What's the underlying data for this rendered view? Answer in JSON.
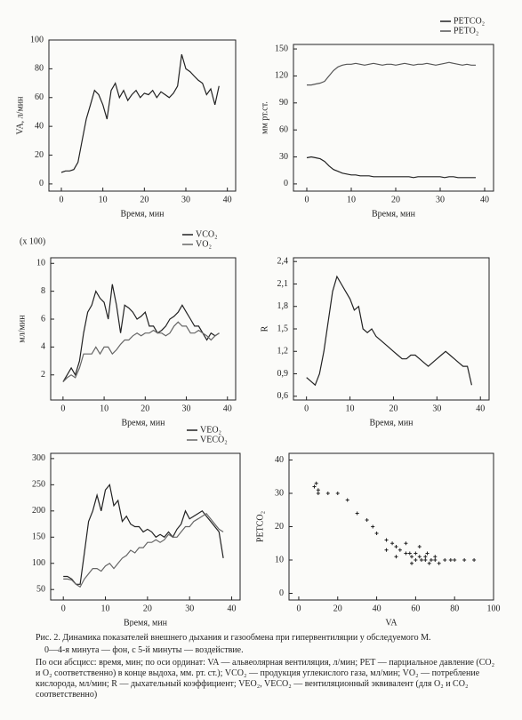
{
  "chart_data": [
    {
      "type": "line",
      "xlabel": "Время, мин",
      "ylabel": "VA, л/мин",
      "color": "#222",
      "x": [
        0,
        1,
        2,
        3,
        4,
        5,
        6,
        7,
        8,
        9,
        10,
        11,
        12,
        13,
        14,
        15,
        16,
        17,
        18,
        19,
        20,
        21,
        22,
        23,
        24,
        25,
        26,
        27,
        28,
        29,
        30,
        31,
        32,
        33,
        34,
        35,
        36,
        37,
        38
      ],
      "values": [
        8,
        9,
        9,
        10,
        15,
        30,
        45,
        55,
        65,
        62,
        55,
        45,
        65,
        70,
        60,
        65,
        58,
        62,
        65,
        60,
        63,
        62,
        65,
        60,
        64,
        62,
        60,
        63,
        68,
        90,
        80,
        78,
        75,
        72,
        70,
        62,
        66,
        55,
        68
      ],
      "xlim": [
        -3,
        42
      ],
      "xticks": [
        0,
        10,
        20,
        30,
        40
      ],
      "ylim": [
        -5,
        100
      ],
      "yticks": [
        0,
        20,
        40,
        60,
        80,
        100
      ]
    },
    {
      "type": "line",
      "xlabel": "Время, мин",
      "ylabel": "мм рт.ст.",
      "x": [
        0,
        1,
        2,
        3,
        4,
        5,
        6,
        7,
        8,
        9,
        10,
        11,
        12,
        13,
        14,
        15,
        16,
        17,
        18,
        19,
        20,
        21,
        22,
        23,
        24,
        25,
        26,
        27,
        28,
        29,
        30,
        31,
        32,
        33,
        34,
        35,
        36,
        37,
        38
      ],
      "series": [
        {
          "name": "PETCO₂",
          "color": "#222",
          "values": [
            29,
            30,
            29,
            28,
            25,
            20,
            16,
            14,
            12,
            11,
            10,
            10,
            9,
            9,
            9,
            8,
            8,
            8,
            8,
            8,
            8,
            8,
            8,
            8,
            7,
            8,
            8,
            8,
            8,
            8,
            8,
            7,
            8,
            8,
            7,
            7,
            7,
            7,
            7
          ]
        },
        {
          "name": "PETO₂",
          "color": "#555",
          "values": [
            110,
            110,
            111,
            112,
            114,
            120,
            126,
            130,
            132,
            133,
            133,
            134,
            133,
            132,
            133,
            134,
            133,
            132,
            133,
            133,
            132,
            133,
            134,
            133,
            132,
            133,
            133,
            134,
            133,
            132,
            133,
            134,
            135,
            134,
            133,
            132,
            133,
            132,
            132
          ]
        }
      ],
      "legend": "top-right",
      "xlim": [
        -3,
        42
      ],
      "xticks": [
        0,
        10,
        20,
        30,
        40
      ],
      "ylim": [
        -8,
        155
      ],
      "yticks": [
        0,
        30,
        60,
        90,
        120,
        150
      ]
    },
    {
      "type": "line",
      "xlabel": "Время, мин",
      "ylabel": "мл/мин",
      "scale_note": "(x 100)",
      "x": [
        0,
        1,
        2,
        3,
        4,
        5,
        6,
        7,
        8,
        9,
        10,
        11,
        12,
        13,
        14,
        15,
        16,
        17,
        18,
        19,
        20,
        21,
        22,
        23,
        24,
        25,
        26,
        27,
        28,
        29,
        30,
        31,
        32,
        33,
        34,
        35,
        36,
        37,
        38
      ],
      "series": [
        {
          "name": "VCO₂",
          "color": "#222",
          "values": [
            1.5,
            2,
            2.5,
            2,
            3,
            5,
            6.5,
            7,
            8,
            7.5,
            7.2,
            6,
            8.5,
            7,
            5,
            7,
            6.8,
            6.5,
            6,
            6.2,
            6.5,
            5.5,
            5.5,
            5,
            5.2,
            5.5,
            6,
            6.2,
            6.5,
            7,
            6.5,
            6,
            5.5,
            5.5,
            5,
            4.5,
            5,
            4.8,
            5
          ]
        },
        {
          "name": "VO₂",
          "color": "#666",
          "values": [
            1.5,
            1.8,
            2,
            1.8,
            2.5,
            3.5,
            3.5,
            3.5,
            4,
            3.5,
            4,
            4,
            3.5,
            3.8,
            4.2,
            4.5,
            4.5,
            4.8,
            5,
            4.8,
            5,
            5,
            5.2,
            5,
            5,
            4.8,
            5,
            5.5,
            5.8,
            5.5,
            5.5,
            5,
            5,
            5.2,
            5,
            4.8,
            4.5,
            4.8,
            5
          ]
        }
      ],
      "legend": "top-right",
      "xlim": [
        -3,
        42
      ],
      "xticks": [
        0,
        10,
        20,
        30,
        40
      ],
      "ylim": [
        0.2,
        10.4
      ],
      "yticks": [
        2,
        4,
        6,
        8,
        10
      ]
    },
    {
      "type": "line",
      "xlabel": "Время, мин",
      "ylabel": "R",
      "color": "#222",
      "x": [
        0,
        1,
        2,
        3,
        4,
        5,
        6,
        7,
        8,
        9,
        10,
        11,
        12,
        13,
        14,
        15,
        16,
        17,
        18,
        19,
        20,
        21,
        22,
        23,
        24,
        25,
        26,
        27,
        28,
        29,
        30,
        31,
        32,
        33,
        34,
        35,
        36,
        37,
        38
      ],
      "values": [
        0.85,
        0.8,
        0.75,
        0.9,
        1.2,
        1.6,
        2.0,
        2.2,
        2.1,
        2.0,
        1.9,
        1.75,
        1.8,
        1.5,
        1.45,
        1.5,
        1.4,
        1.35,
        1.3,
        1.25,
        1.2,
        1.15,
        1.1,
        1.1,
        1.15,
        1.15,
        1.1,
        1.05,
        1.0,
        1.05,
        1.1,
        1.15,
        1.2,
        1.15,
        1.1,
        1.05,
        1.0,
        1.0,
        0.75
      ],
      "xlim": [
        -3,
        42
      ],
      "xticks": [
        0,
        10,
        20,
        30,
        40
      ],
      "ylim": [
        0.55,
        2.45
      ],
      "yticks": [
        {
          "value": 0.6,
          "label": "0,6"
        },
        {
          "value": 0.9,
          "label": "0,9"
        },
        {
          "value": 1.2,
          "label": "1,2"
        },
        {
          "value": 1.5,
          "label": "1,5"
        },
        {
          "value": 1.8,
          "label": "1,8"
        },
        {
          "value": 2.1,
          "label": "2,1"
        },
        {
          "value": 2.4,
          "label": "2,4"
        }
      ]
    },
    {
      "type": "line",
      "xlabel": "Время, мин",
      "x": [
        0,
        1,
        2,
        3,
        4,
        5,
        6,
        7,
        8,
        9,
        10,
        11,
        12,
        13,
        14,
        15,
        16,
        17,
        18,
        19,
        20,
        21,
        22,
        23,
        24,
        25,
        26,
        27,
        28,
        29,
        30,
        31,
        32,
        33,
        34,
        35,
        36,
        37,
        38
      ],
      "series": [
        {
          "name": "VEO₂",
          "color": "#222",
          "values": [
            75,
            75,
            70,
            60,
            60,
            120,
            180,
            200,
            230,
            200,
            240,
            250,
            210,
            220,
            180,
            190,
            175,
            170,
            170,
            160,
            165,
            160,
            150,
            155,
            150,
            160,
            150,
            165,
            175,
            200,
            185,
            190,
            195,
            200,
            190,
            180,
            170,
            160,
            110
          ]
        },
        {
          "name": "VECO₂",
          "color": "#666",
          "values": [
            70,
            70,
            68,
            60,
            55,
            70,
            80,
            90,
            90,
            85,
            95,
            100,
            90,
            100,
            110,
            115,
            125,
            120,
            130,
            130,
            140,
            140,
            145,
            140,
            145,
            155,
            150,
            150,
            160,
            170,
            170,
            180,
            185,
            190,
            195,
            185,
            175,
            165,
            160
          ]
        }
      ],
      "legend": "top-right",
      "xlim": [
        -3,
        42
      ],
      "xticks": [
        0,
        10,
        20,
        30,
        40
      ],
      "ylim": [
        30,
        310
      ],
      "yticks": [
        50,
        100,
        150,
        200,
        250,
        300
      ]
    },
    {
      "type": "scatter",
      "xlabel": "VA",
      "ylabel": "PETCO₂",
      "color": "#222",
      "x": [
        8,
        9,
        10,
        10,
        15,
        20,
        25,
        30,
        35,
        38,
        40,
        45,
        48,
        50,
        52,
        55,
        57,
        58,
        60,
        60,
        62,
        63,
        65,
        65,
        66,
        68,
        70,
        70,
        72,
        75,
        78,
        80,
        85,
        90,
        62,
        55,
        45,
        50,
        58,
        67
      ],
      "values": [
        32,
        33,
        30,
        31,
        30,
        30,
        28,
        24,
        22,
        20,
        18,
        16,
        15,
        14,
        13,
        12,
        12,
        11,
        12,
        10,
        11,
        10,
        11,
        10,
        12,
        10,
        11,
        10,
        9,
        10,
        10,
        10,
        10,
        10,
        14,
        15,
        13,
        11,
        9,
        9
      ],
      "xlim": [
        -5,
        100
      ],
      "xticks": [
        0,
        20,
        40,
        60,
        80,
        100
      ],
      "ylim": [
        -2,
        42
      ],
      "yticks": [
        0,
        10,
        20,
        30,
        40
      ]
    }
  ],
  "caption": {
    "title": "Рис. 2. Динамика показателей внешнего дыхания и газообмена при гипервентиляции у обследуемого М.",
    "note": "0—4-я минута — фон, с 5-й минуты — воздействие.",
    "text": "По оси абсцисс: время, мин; по оси ординат: VA — альвеолярная вентиляция, л/мин; PET — парциальное давление (CO₂ и O₂ соответственно) в конце выдоха, мм. рт. ст.); VCO₂ — продукция углекислого газа, мл/мин; VO₂ — потребление кислорода, мл/мин; R — дыхательный коэффициент; VEO₂, VECO₂ — вентиляционный эквивалент (для O₂ и CO₂ соответственно)"
  }
}
